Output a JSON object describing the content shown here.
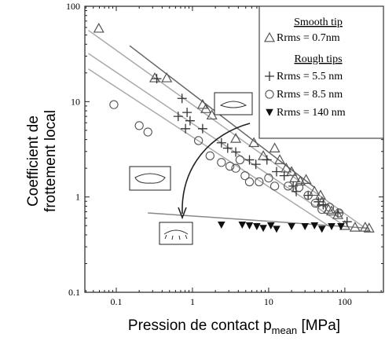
{
  "chart_data": {
    "type": "scatter",
    "ylabel": [
      "Coefficient de",
      "frottement local"
    ],
    "xlabel": {
      "text": "Pression de contact p",
      "sub": "mean",
      "after": " [MPa]"
    },
    "log_x": true,
    "log_y": true,
    "xlim": [
      0.0387,
      321
    ],
    "ylim": [
      0.1,
      100
    ],
    "xticks": [
      0.1,
      1,
      10,
      100
    ],
    "yticks": [
      0.1,
      1,
      10,
      100
    ],
    "legend_headings": [
      "Smooth tip",
      "Rough tips"
    ],
    "series": [
      {
        "name": "Rrms = 0.7nm",
        "marker": "triangle-up",
        "color": "#555555",
        "x": [
          0.059,
          0.32,
          0.46,
          1.36,
          1.5,
          1.8,
          3.7,
          6.4,
          8.5,
          12,
          14,
          17,
          20,
          22,
          26,
          31,
          40,
          48,
          50,
          61,
          67,
          81,
          100,
          136,
          185,
          208
        ],
        "values": [
          58.6,
          17.7,
          17.7,
          9.3,
          8.4,
          7.2,
          4.1,
          3.7,
          2.7,
          3.25,
          2.45,
          2.0,
          1.84,
          1.58,
          1.46,
          1.52,
          1.14,
          1.04,
          0.89,
          0.74,
          0.71,
          0.65,
          0.5,
          0.48,
          0.48,
          0.47
        ]
      },
      {
        "name": "Rrms = 5.5 nm",
        "marker": "plus",
        "color": "#333333",
        "x": [
          0.34,
          0.65,
          0.73,
          0.81,
          0.85,
          0.93,
          1.36,
          2.4,
          2.9,
          3.7,
          5.6,
          6.8,
          9.5,
          12.7,
          16,
          21,
          23,
          33,
          45,
          52,
          81,
          107
        ],
        "values": [
          17.4,
          7.0,
          10.8,
          5.2,
          7.7,
          6.3,
          5.2,
          3.7,
          3.25,
          2.96,
          2.45,
          2.2,
          2.45,
          1.84,
          1.67,
          1.3,
          1.14,
          1.04,
          0.89,
          0.83,
          0.68,
          0.55
        ]
      },
      {
        "name": "Rrms = 8.5 nm",
        "marker": "circle",
        "color": "#555555",
        "x": [
          0.093,
          0.2,
          0.26,
          1.2,
          1.7,
          2.4,
          3.1,
          3.7,
          4.2,
          4.9,
          5.6,
          7.5,
          10,
          12,
          18,
          25,
          33,
          41,
          50,
          63,
          84
        ],
        "values": [
          9.3,
          5.6,
          4.8,
          3.9,
          2.7,
          2.3,
          2.1,
          2.0,
          2.45,
          1.67,
          1.44,
          1.44,
          1.58,
          1.3,
          1.3,
          1.26,
          1.04,
          0.86,
          0.74,
          0.78,
          0.68
        ]
      },
      {
        "name": "Rrms = 140 nm",
        "marker": "triangle-down",
        "color": "#111111",
        "x": [
          2.4,
          4.5,
          5.6,
          7,
          8.5,
          10.7,
          12.7,
          20,
          30,
          40,
          50,
          67,
          89
        ],
        "values": [
          0.51,
          0.51,
          0.5,
          0.49,
          0.47,
          0.5,
          0.46,
          0.49,
          0.49,
          0.5,
          0.46,
          0.49,
          0.49
        ]
      }
    ],
    "fit_lines": [
      {
        "color": "#aaaaaa",
        "x": [
          0.043,
          208
        ],
        "values": [
          56,
          0.44
        ]
      },
      {
        "color": "#aaaaaa",
        "x": [
          0.043,
          102
        ],
        "values": [
          32,
          0.49
        ]
      },
      {
        "color": "#aaaaaa",
        "x": [
          0.043,
          63
        ],
        "values": [
          22,
          0.49
        ]
      },
      {
        "color": "#666666",
        "x": [
          0.15,
          40
        ],
        "values": [
          38.6,
          1.26
        ]
      },
      {
        "color": "#888888",
        "x": [
          0.26,
          208
        ],
        "values": [
          0.68,
          0.47
        ]
      }
    ]
  }
}
